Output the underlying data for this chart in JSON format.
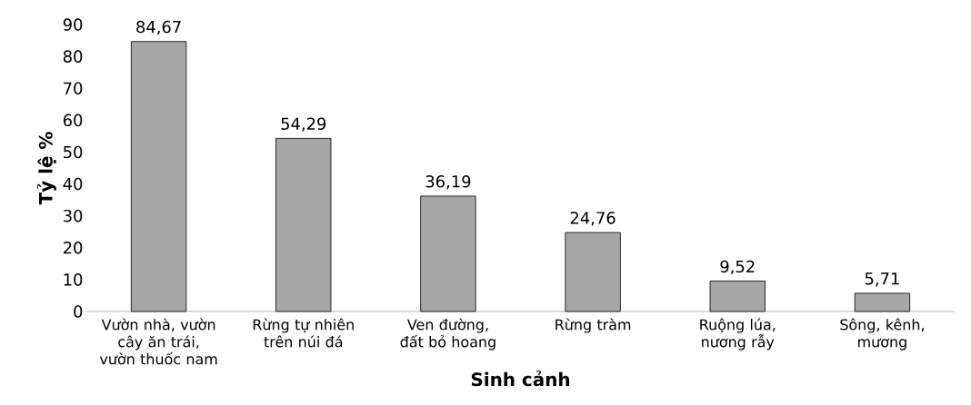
{
  "chart_data": {
    "type": "bar",
    "xlabel": "Sinh cảnh",
    "ylabel": "Tỷ lệ %",
    "categories": [
      "Vườn nhà, vườn cây ăn trái, vườn thuốc nam",
      "Rừng tự nhiên trên núi đá",
      "Ven đường, đất bỏ hoang",
      "Rừng tràm",
      "Ruộng lúa, nương rẫy",
      "Sông, kênh, mương"
    ],
    "values": [
      84.67,
      54.29,
      36.19,
      24.76,
      9.52,
      5.71
    ],
    "value_labels": [
      "84,67",
      "54,29",
      "36,19",
      "24,76",
      "9,52",
      "5,71"
    ],
    "color": "#a6a6a6",
    "ylim": [
      0,
      90
    ],
    "yticks": [
      0,
      10,
      20,
      30,
      40,
      50,
      60,
      70,
      80,
      90
    ],
    "grid": false
  }
}
